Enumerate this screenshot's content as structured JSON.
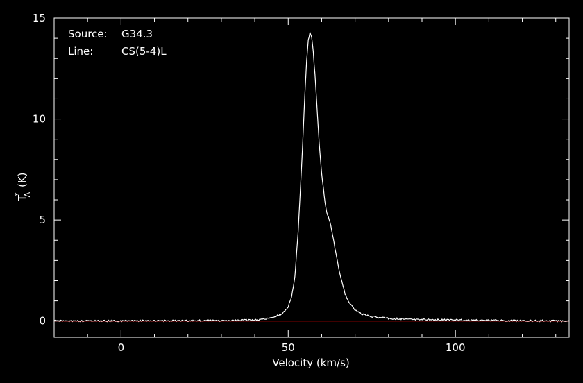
{
  "annotations": {
    "source_key": "Source:",
    "source_value": "G34.3",
    "line_key": "Line:",
    "line_value": "CS(5-4)L"
  },
  "colors": {
    "background": "#000000",
    "axes": "#ffffff",
    "spectrum": "#ffffff",
    "baseline": "#ff0000"
  },
  "chart_data": {
    "type": "line",
    "title": "",
    "xlabel": "Velocity (km/s)",
    "ylabel": "T_A* (K)",
    "ylabel_main": "T",
    "ylabel_sub": "A",
    "ylabel_sup": "*",
    "ylabel_unit": " (K)",
    "xlim": [
      -20,
      134
    ],
    "ylim": [
      -0.8,
      15
    ],
    "xticks": [
      0,
      50,
      100
    ],
    "xtick_labels": [
      "0",
      "50",
      "100"
    ],
    "yticks": [
      0,
      5,
      10,
      15
    ],
    "ytick_labels": [
      "0",
      "5",
      "10",
      "15"
    ],
    "grid": false,
    "series": [
      {
        "color": "#ffffff",
        "x": [
          -20,
          30,
          40,
          44,
          46,
          48,
          50,
          51,
          52,
          53,
          54,
          54.5,
          55,
          55.5,
          56,
          56.5,
          57,
          57.5,
          58,
          58.5,
          59,
          59.5,
          60,
          60.5,
          61,
          61.5,
          62,
          62.5,
          63,
          64,
          65,
          66,
          67,
          68,
          70,
          72,
          75,
          80,
          90,
          100,
          110,
          134
        ],
        "y": [
          0,
          0.02,
          0.05,
          0.12,
          0.2,
          0.35,
          0.7,
          1.2,
          2.2,
          4.5,
          7.6,
          9.5,
          11.3,
          12.9,
          13.9,
          14.3,
          14.1,
          13.3,
          12.2,
          10.9,
          9.5,
          8.3,
          7.3,
          6.6,
          5.9,
          5.4,
          5.15,
          4.9,
          4.5,
          3.6,
          2.7,
          1.95,
          1.35,
          0.95,
          0.55,
          0.35,
          0.22,
          0.13,
          0.07,
          0.05,
          0.03,
          0
        ]
      },
      {
        "color": "#ff0000",
        "x": [
          -20,
          134
        ],
        "y": [
          0,
          0
        ]
      }
    ]
  }
}
